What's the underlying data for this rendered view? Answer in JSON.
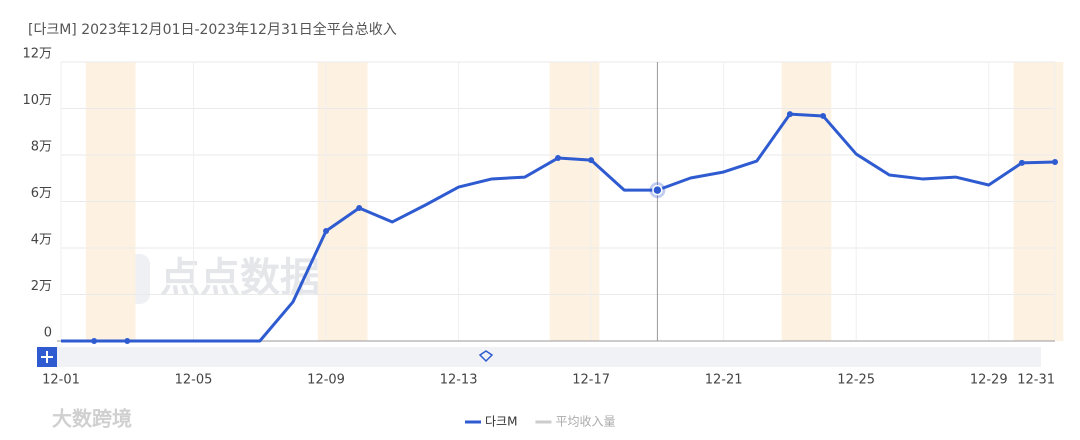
{
  "chart_data": {
    "type": "line",
    "title": "[다크M]  2023年12月01日-2023年12月31日全平台总收入",
    "categories": [
      "12-01",
      null,
      null,
      null,
      "12-05",
      null,
      null,
      null,
      "12-09",
      null,
      null,
      null,
      "12-13",
      null,
      null,
      null,
      "12-17",
      null,
      null,
      null,
      "12-21",
      null,
      null,
      null,
      "12-25",
      null,
      null,
      null,
      "12-29",
      null,
      "12-31"
    ],
    "series": [
      {
        "name": "다크M",
        "color": "#2f5bd1",
        "values": [
          0,
          0,
          0,
          0,
          0,
          0,
          0,
          1.68,
          4.73,
          5.72,
          5.12,
          5.85,
          6.62,
          6.97,
          7.05,
          7.87,
          7.78,
          6.49,
          6.49,
          7.01,
          7.27,
          7.74,
          9.76,
          9.68,
          8.04,
          7.14,
          6.97,
          7.05,
          6.71,
          7.66,
          7.7
        ]
      },
      {
        "name": "平均收入量",
        "color": "#cccccc",
        "values": [
          null,
          null,
          null,
          null,
          null,
          null,
          null,
          null,
          null,
          null,
          null,
          null,
          null,
          null,
          null,
          null,
          null,
          null,
          null,
          null,
          null,
          null,
          null,
          null,
          null,
          null,
          null,
          null,
          null,
          null,
          null
        ]
      }
    ],
    "ylim": [
      0,
      12
    ],
    "yticks": [
      0,
      {
        "value": 2,
        "label": "2万"
      },
      {
        "value": 4,
        "label": "4万"
      },
      {
        "value": 6,
        "label": "6万"
      },
      {
        "value": 8,
        "label": "8万"
      },
      {
        "value": 10,
        "label": "10万"
      },
      {
        "value": 12,
        "label": "12万"
      }
    ],
    "grid": true,
    "legend": "bottom",
    "watermarks": [
      "点点数据",
      "大数跨境"
    ]
  }
}
